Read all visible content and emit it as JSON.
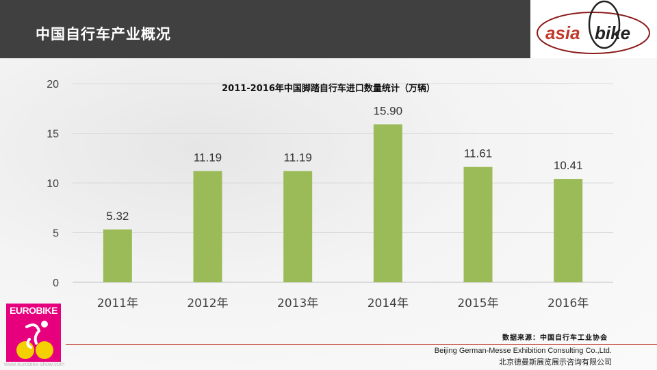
{
  "header": {
    "title": "中国自行车产业概况"
  },
  "logos": {
    "asiabike_left": "asia",
    "asiabike_right": "bike",
    "eurobike": "EUROBIKE",
    "eurobike_url": "www.eurobike-show.com"
  },
  "footer": {
    "source": "数据来源：中国自行车工业协会",
    "company_en": "Beijing German-Messe Exhibition Consulting Co.,Ltd.",
    "company_cn": "北京德曼斯展览展示咨询有限公司"
  },
  "colors": {
    "bar": "#9bbb59",
    "header_bg": "#404040",
    "accent_red": "#c0392b",
    "eurobike": "#e6007e"
  },
  "chart_data": {
    "type": "bar",
    "title": "2011-2016年中国脚踏自行车进口数量统计（万辆）",
    "categories": [
      "2011年",
      "2012年",
      "2013年",
      "2014年",
      "2015年",
      "2016年"
    ],
    "values": [
      5.32,
      11.19,
      11.19,
      15.9,
      11.61,
      10.41
    ],
    "value_labels": [
      "5.32",
      "11.19",
      "11.19",
      "15.90",
      "11.61",
      "10.41"
    ],
    "yticks": [
      "0",
      "5",
      "10",
      "15",
      "20"
    ],
    "ylim": [
      0,
      20
    ],
    "grid": true,
    "legend": "none"
  }
}
